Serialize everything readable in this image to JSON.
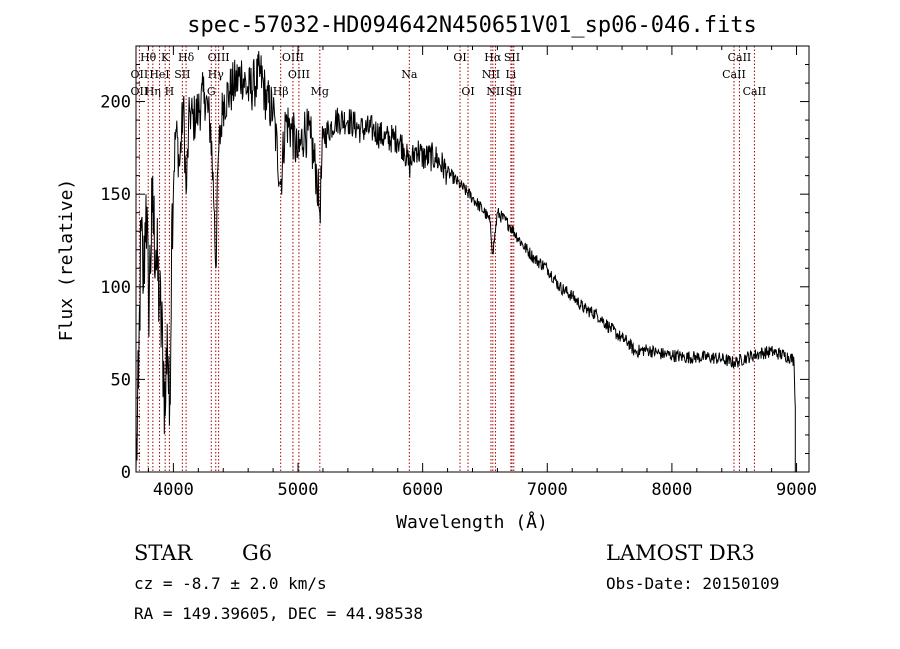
{
  "chart_data": {
    "type": "line",
    "title": "spec-57032-HD094642N450651V01_sp06-046.fits",
    "xlabel": "Wavelength (Å)",
    "ylabel": "Flux (relative)",
    "xlim": [
      3700,
      9100
    ],
    "ylim": [
      0,
      230
    ],
    "x_ticks": [
      4000,
      5000,
      6000,
      7000,
      8000,
      9000
    ],
    "y_ticks": [
      0,
      50,
      100,
      150,
      200
    ],
    "series": [
      {
        "name": "flux",
        "color": "#000000",
        "x": [
          3700,
          3720,
          3740,
          3760,
          3780,
          3800,
          3830,
          3860,
          3890,
          3920,
          3934,
          3950,
          3968,
          3990,
          4020,
          4050,
          4080,
          4102,
          4130,
          4160,
          4200,
          4250,
          4300,
          4330,
          4340,
          4360,
          4400,
          4450,
          4500,
          4550,
          4600,
          4650,
          4700,
          4750,
          4800,
          4861,
          4900,
          4950,
          5000,
          5050,
          5100,
          5150,
          5175,
          5200,
          5300,
          5400,
          5500,
          5600,
          5700,
          5800,
          5850,
          5893,
          5950,
          6000,
          6100,
          6200,
          6300,
          6400,
          6500,
          6540,
          6563,
          6600,
          6700,
          6800,
          6900,
          7000,
          7100,
          7200,
          7300,
          7400,
          7500,
          7600,
          7650,
          7700,
          7800,
          7900,
          8000,
          8100,
          8200,
          8300,
          8400,
          8498,
          8542,
          8600,
          8662,
          8700,
          8800,
          8900,
          8950,
          8980,
          8990
        ],
        "y": [
          0,
          45,
          130,
          100,
          150,
          90,
          140,
          120,
          90,
          60,
          30,
          80,
          25,
          145,
          185,
          165,
          200,
          150,
          195,
          190,
          195,
          205,
          185,
          140,
          110,
          170,
          200,
          205,
          210,
          215,
          205,
          210,
          215,
          200,
          195,
          155,
          190,
          185,
          170,
          185,
          180,
          160,
          140,
          180,
          190,
          190,
          185,
          185,
          180,
          180,
          175,
          165,
          175,
          170,
          170,
          162,
          155,
          148,
          140,
          135,
          118,
          140,
          133,
          123,
          115,
          110,
          100,
          95,
          88,
          85,
          78,
          72,
          70,
          65,
          66,
          64,
          63,
          62,
          62,
          62,
          61,
          59,
          60,
          62,
          63,
          64,
          65,
          63,
          62,
          60,
          35
        ]
      }
    ],
    "lines": [
      {
        "label": "Hθ",
        "wave": 3798,
        "row": 1
      },
      {
        "label": "OII",
        "wave": 3727,
        "row": 2
      },
      {
        "label": "OII",
        "wave": 3727,
        "row": 3
      },
      {
        "label": "HeI",
        "wave": 3889,
        "row": 2
      },
      {
        "label": "Hη",
        "wave": 3835,
        "row": 3
      },
      {
        "label": "K",
        "wave": 3934,
        "row": 1
      },
      {
        "label": "SII",
        "wave": 4072,
        "row": 2
      },
      {
        "label": "H",
        "wave": 3968,
        "row": 3
      },
      {
        "label": "Hδ",
        "wave": 4102,
        "row": 1
      },
      {
        "label": "OIII",
        "wave": 4363,
        "row": 1
      },
      {
        "label": "Hγ",
        "wave": 4340,
        "row": 2
      },
      {
        "label": "G",
        "wave": 4304,
        "row": 3
      },
      {
        "label": "OIII",
        "wave": 4959,
        "row": 1
      },
      {
        "label": "OIII",
        "wave": 5007,
        "row": 2
      },
      {
        "label": "Hβ",
        "wave": 4861,
        "row": 3
      },
      {
        "label": "Mg",
        "wave": 5175,
        "row": 3
      },
      {
        "label": "Na",
        "wave": 5893,
        "row": 2
      },
      {
        "label": "OI",
        "wave": 6300,
        "row": 1
      },
      {
        "label": "OI",
        "wave": 6364,
        "row": 3
      },
      {
        "label": "Hα",
        "wave": 6563,
        "row": 1
      },
      {
        "label": "NII",
        "wave": 6548,
        "row": 2
      },
      {
        "label": "NII",
        "wave": 6584,
        "row": 3
      },
      {
        "label": "SII",
        "wave": 6717,
        "row": 1
      },
      {
        "label": "Li",
        "wave": 6708,
        "row": 2
      },
      {
        "label": "SII",
        "wave": 6731,
        "row": 3
      },
      {
        "label": "CaII",
        "wave": 8542,
        "row": 1
      },
      {
        "label": "CaII",
        "wave": 8498,
        "row": 2
      },
      {
        "label": "CaII",
        "wave": 8662,
        "row": 3
      }
    ],
    "line_marker_color": "#aa0000",
    "annotations": {
      "object_class": "STAR",
      "subclass": "G6",
      "survey": "LAMOST DR3",
      "cz": "cz = -8.7 ± 2.0 km/s",
      "obs_date": "Obs-Date: 20150109",
      "coords": "RA = 149.39605, DEC =  44.98538"
    }
  }
}
